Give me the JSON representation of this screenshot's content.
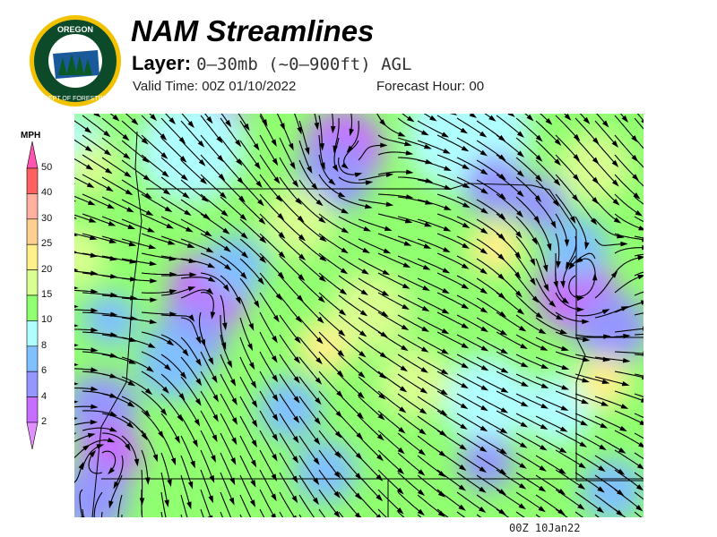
{
  "header": {
    "title": "NAM Streamlines",
    "layer_label": "Layer:",
    "layer_value": "0–30mb (~0–900ft) AGL",
    "valid_time": "Valid Time: 00Z 01/10/2022",
    "forecast_hour": "Forecast Hour: 00"
  },
  "logo": {
    "text": "OREGON DEPARTMENT OF FORESTRY"
  },
  "legend": {
    "unit": "MPH",
    "labels": [
      "50",
      "40",
      "30",
      "25",
      "20",
      "15",
      "10",
      "8",
      "6",
      "4",
      "2"
    ],
    "colors": [
      "#ff6060",
      "#ffb0a0",
      "#ffd090",
      "#fff08a",
      "#d8ff90",
      "#90ff70",
      "#b0ffff",
      "#80c0ff",
      "#9696ff",
      "#c86eff"
    ],
    "top_arrow_color": "#ff55b0",
    "bottom_arrow_color": "#e090ff"
  },
  "map": {
    "timestamp": "00Z 10Jan22"
  }
}
